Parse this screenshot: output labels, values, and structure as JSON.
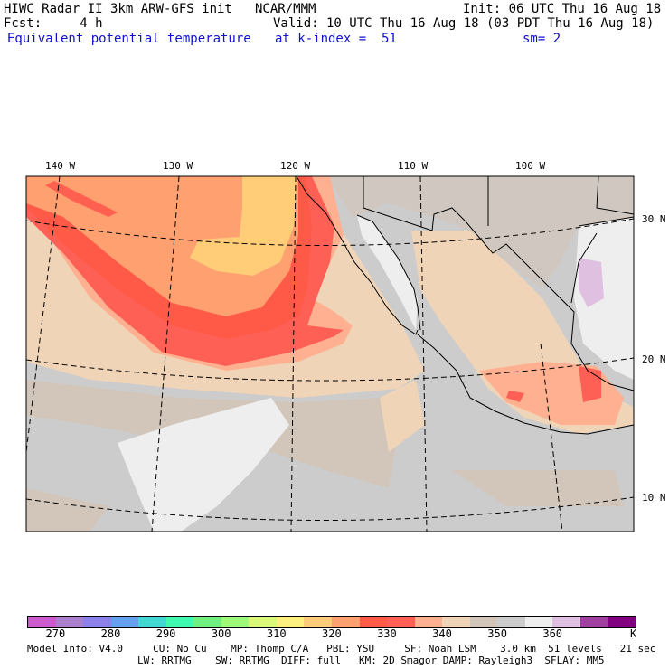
{
  "header": {
    "title": "HIWC Radar II 3km ARW-GFS init",
    "org": "NCAR/MMM",
    "init": "Init: 06 UTC Thu 16 Aug 18",
    "fcst": "Fcst:     4 h",
    "valid": "Valid: 10 UTC Thu 16 Aug 18 (03 PDT Thu 16 Aug 18)",
    "field": "Equivalent potential temperature",
    "level": "at k-index =  51",
    "smooth": "sm= 2"
  },
  "map": {
    "lon_labels": [
      "140 W",
      "130 W",
      "120 W",
      "110 W",
      "100 W"
    ],
    "lat_labels": [
      "30 N",
      "20 N",
      "10 N"
    ]
  },
  "colorbar": {
    "colors": [
      "#cc5acc",
      "#aa80cc",
      "#8c80ea",
      "#64a0ee",
      "#40d8d0",
      "#40f8b0",
      "#70f080",
      "#a0f878",
      "#dcf878",
      "#fff080",
      "#ffcc78",
      "#ffa070",
      "#ff5a48",
      "#ff6055",
      "#ffb090",
      "#f0d4b8",
      "#d2c6ba",
      "#cccccc",
      "#eeeeee",
      "#e0c0e0",
      "#a040a0",
      "#800080"
    ],
    "labels": [
      "270",
      "280",
      "290",
      "300",
      "310",
      "320",
      "330",
      "340",
      "350",
      "360"
    ],
    "unit": "K"
  },
  "footer": {
    "line1": "Model Info: V4.0     CU: No Cu    MP: Thomp C/A   PBL: YSU     SF: Noah LSM    3.0 km  51 levels   21 sec",
    "line2": "LW: RRTMG    SW: RRTMG  DIFF: full   KM: 2D Smagor DAMP: Rayleigh3  SFLAY: MM5"
  }
}
